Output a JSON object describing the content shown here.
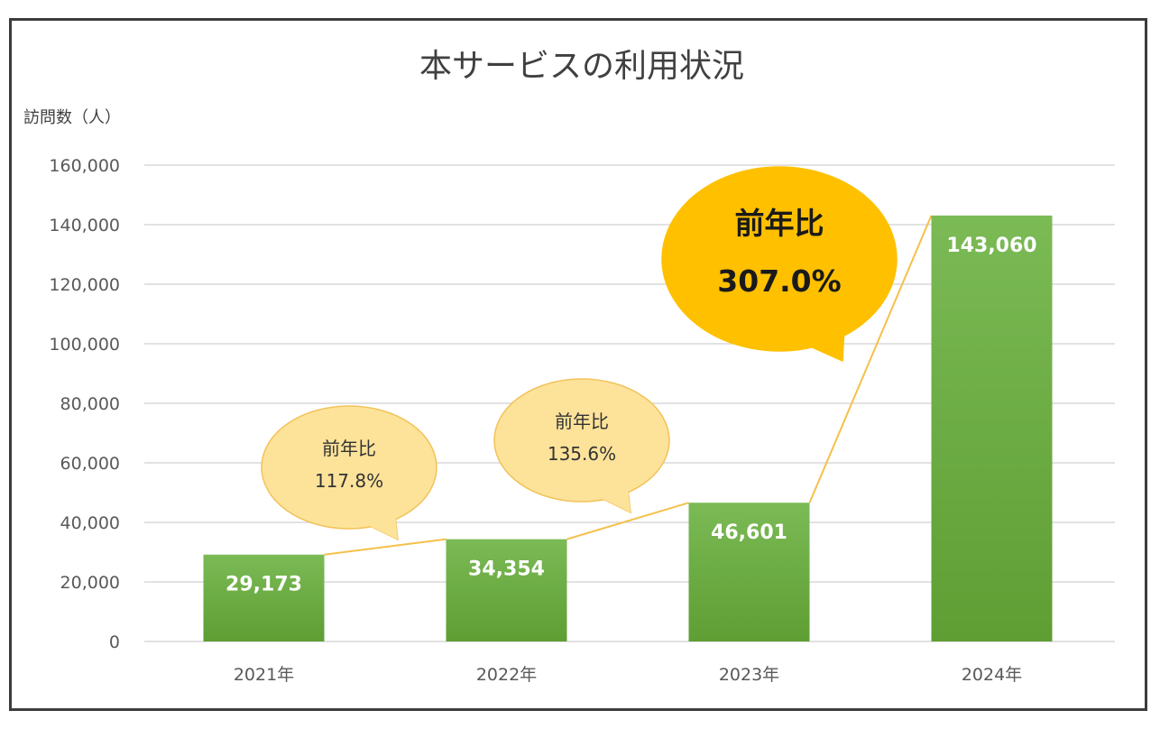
{
  "chart_data": {
    "type": "bar",
    "title": "本サービスの利用状況",
    "ylabel": "訪問数（人）",
    "xlabel": "",
    "categories": [
      "2021年",
      "2022年",
      "2023年",
      "2024年"
    ],
    "values": [
      29173,
      34354,
      46601,
      143060
    ],
    "value_labels": [
      "29,173",
      "34,354",
      "46,601",
      "143,060"
    ],
    "ylim": [
      0,
      160000
    ],
    "yticks": [
      0,
      20000,
      40000,
      60000,
      80000,
      100000,
      120000,
      140000,
      160000
    ],
    "ytick_labels": [
      "0",
      "20,000",
      "40,000",
      "60,000",
      "80,000",
      "100,000",
      "120,000",
      "140,000",
      "160,000"
    ],
    "grid": true,
    "annotations": [
      {
        "label": "前年比",
        "value": "117.8%",
        "style": "small"
      },
      {
        "label": "前年比",
        "value": "135.6%",
        "style": "small"
      },
      {
        "label": "前年比",
        "value": "307.0%",
        "style": "large"
      }
    ],
    "colors": {
      "bar_top": "#7bba55",
      "bar_bottom": "#5e9e33",
      "connector": "#f5c04a",
      "bubble_small": "#fde39a",
      "bubble_small_stroke": "#f2c25a",
      "bubble_large": "#ffc000",
      "grid": "#d9d9d9"
    }
  }
}
